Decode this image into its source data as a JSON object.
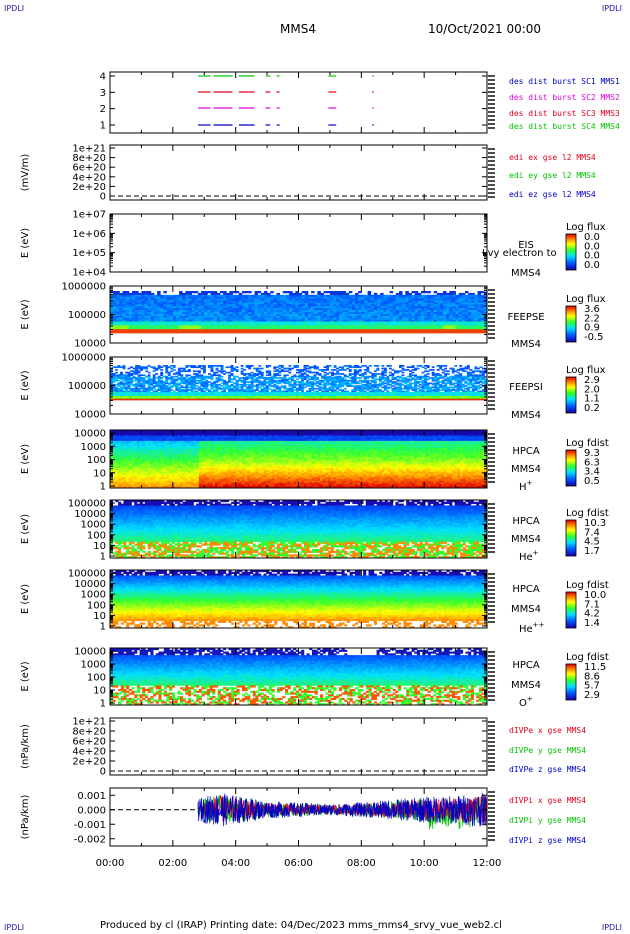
{
  "corners": {
    "tl": "IPDLI",
    "tr": "IPDLI",
    "bl": "IPDLI",
    "br": "IPDLI"
  },
  "header": {
    "spacecraft": "MMS4",
    "datetime": "10/Oct/2021 00:00"
  },
  "footer": {
    "text": "Produced by cl (IRAP)   Printing date: 04/Dec/2023   mms_mms4_srvy_vue_web2.cl"
  },
  "colors": {
    "red": "#e0001e",
    "green": "#00c400",
    "blue": "#0000c8",
    "magenta": "#e000e0",
    "dash": "#000000"
  },
  "time_axis": [
    "00:00",
    "02:00",
    "04:00",
    "06:00",
    "08:00",
    "10:00",
    "12:00"
  ],
  "panels": {
    "burst": {
      "yticks": [
        "4",
        "3",
        "2",
        "1"
      ],
      "legend": [
        {
          "text": "des dist burst SC1 MMS1",
          "color": "#0000c8"
        },
        {
          "text": "des dist burst SC2 MMS2",
          "color": "#e000e0"
        },
        {
          "text": "des dist burst SC3 MMS3",
          "color": "#e0001e"
        },
        {
          "text": "des dist burst SC4 MMS4",
          "color": "#00c400"
        }
      ]
    },
    "edi": {
      "ylabel": "(mV/m)",
      "yticks": [
        "1e+21",
        "8e+20",
        "6e+20",
        "4e+20",
        "2e+20",
        "0"
      ],
      "legend": [
        {
          "text": "edi ex gse l2 MMS4",
          "color": "#e0001e"
        },
        {
          "text": "edi ey gse l2 MMS4",
          "color": "#00c400"
        },
        {
          "text": "edi ez gse l2 MMS4",
          "color": "#0000c8"
        }
      ]
    },
    "eis": {
      "ylabel": "E (eV)",
      "yticks": [
        "1e+07",
        "1e+06",
        "1e+05",
        "1e+04"
      ],
      "side": [
        "EIS",
        "MMS4"
      ],
      "overlay": "Lvy electron to",
      "cbar_title": "Log flux",
      "cbar_ticks": [
        "0.0",
        "0.0",
        "0.0",
        "0.0"
      ]
    },
    "feepse": {
      "ylabel": "E (eV)",
      "yticks": [
        "1000000",
        "100000",
        "10000"
      ],
      "side": [
        "FEEPSE",
        "MMS4"
      ],
      "cbar_title": "Log flux",
      "cbar_ticks": [
        "3.6",
        "2.2",
        "0.9",
        "-0.5"
      ]
    },
    "feepsi": {
      "ylabel": "E (eV)",
      "yticks": [
        "1000000",
        "100000",
        "10000"
      ],
      "side": [
        "FEEPSI",
        "MMS4"
      ],
      "cbar_title": "Log flux",
      "cbar_ticks": [
        "2.9",
        "2.0",
        "1.1",
        "0.2"
      ]
    },
    "hpca_h": {
      "ylabel": "E (eV)",
      "yticks": [
        "10000",
        "1000",
        "100",
        "10",
        "1"
      ],
      "side": [
        "HPCA",
        "MMS4"
      ],
      "species": "H",
      "species_sup": "+",
      "cbar_title": "Log fdist",
      "cbar_ticks": [
        "9.3",
        "6.3",
        "3.4",
        "0.5"
      ]
    },
    "hpca_he": {
      "ylabel": "E (eV)",
      "yticks": [
        "100000",
        "10000",
        "1000",
        "100",
        "10",
        "1"
      ],
      "side": [
        "HPCA",
        "MMS4"
      ],
      "species": "He",
      "species_sup": "+",
      "cbar_title": "Log fdist",
      "cbar_ticks": [
        "10.3",
        "7.4",
        "4.5",
        "1.7"
      ]
    },
    "hpca_he2": {
      "ylabel": "E (eV)",
      "yticks": [
        "100000",
        "10000",
        "1000",
        "100",
        "10",
        "1"
      ],
      "side": [
        "HPCA",
        "MMS4"
      ],
      "species": "He",
      "species_sup": "++",
      "cbar_title": "Log fdist",
      "cbar_ticks": [
        "10.0",
        "7.1",
        "4.2",
        "1.4"
      ]
    },
    "hpca_o": {
      "ylabel": "E (eV)",
      "yticks": [
        "10000",
        "1000",
        "100",
        "10",
        "1"
      ],
      "side": [
        "HPCA",
        "MMS4"
      ],
      "species": "O",
      "species_sup": "+",
      "cbar_title": "Log fdist",
      "cbar_ticks": [
        "11.5",
        "8.6",
        "5.7",
        "2.9"
      ]
    },
    "divpe": {
      "ylabel": "(nPa/km)",
      "yticks": [
        "1e+21",
        "8e+20",
        "6e+20",
        "4e+20",
        "2e+20",
        "0"
      ],
      "legend": [
        {
          "text": "dIVPe x gse MMS4",
          "color": "#e0001e"
        },
        {
          "text": "dIVPe y gse MMS4",
          "color": "#00c400"
        },
        {
          "text": "dIVPe z gse MMS4",
          "color": "#0000c8"
        }
      ]
    },
    "divpi": {
      "ylabel": "(nPa/km)",
      "yticks": [
        "0.001",
        "0.000",
        "-0.001",
        "-0.002"
      ],
      "legend": [
        {
          "text": "dIVPi x gse MMS4",
          "color": "#e0001e"
        },
        {
          "text": "dIVPi y gse MMS4",
          "color": "#00c400"
        },
        {
          "text": "dIVPi z gse MMS4",
          "color": "#0000c8"
        }
      ]
    }
  },
  "chart_data": {
    "type": "line",
    "title": "MMS4 10/Oct/2021 00:00",
    "x_range": [
      "00:00",
      "12:00"
    ],
    "burst_intervals_hours": [
      [
        2.8,
        3.2
      ],
      [
        3.3,
        3.9
      ],
      [
        4.1,
        4.6
      ],
      [
        4.95,
        5.1
      ],
      [
        5.3,
        5.4
      ],
      [
        6.95,
        7.2
      ],
      [
        8.35,
        8.4
      ]
    ],
    "divpi": {
      "ylim": [
        -0.0025,
        0.0015
      ],
      "start_hour": 2.8,
      "envelope": [
        [
          2.8,
          0.0008
        ],
        [
          3.5,
          0.0012
        ],
        [
          4.0,
          0.001
        ],
        [
          5.0,
          0.0006
        ],
        [
          6.0,
          0.0005
        ],
        [
          7.0,
          0.0004
        ],
        [
          8.0,
          0.0005
        ],
        [
          9.0,
          0.0007
        ],
        [
          10.0,
          0.0009
        ],
        [
          11.0,
          0.001
        ],
        [
          12.0,
          0.0012
        ]
      ]
    }
  }
}
